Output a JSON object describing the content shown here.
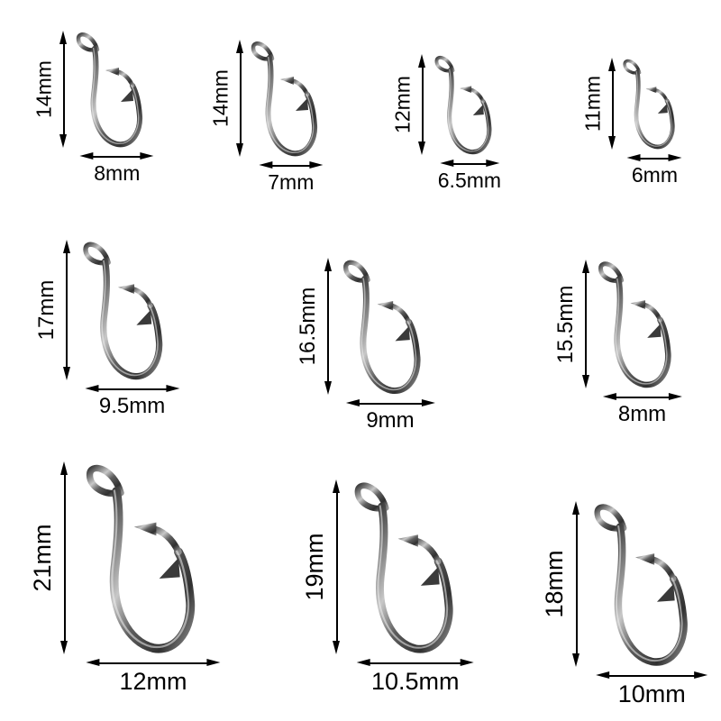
{
  "canvas": {
    "background": "#ffffff",
    "unit": "mm"
  },
  "style": {
    "dimension_color": "#000000",
    "hook_metal_dark": "#303030",
    "hook_metal_mid": "#5d5d5d",
    "hook_metal_light": "#c8c8c8"
  },
  "rows": [
    {
      "hooks": [
        {
          "height_label": "14mm",
          "width_label": "8mm",
          "height_mm": 14,
          "width_mm": 8
        },
        {
          "height_label": "14mm",
          "width_label": "7mm",
          "height_mm": 14,
          "width_mm": 7
        },
        {
          "height_label": "12mm",
          "width_label": "6.5mm",
          "height_mm": 12,
          "width_mm": 6.5
        },
        {
          "height_label": "11mm",
          "width_label": "6mm",
          "height_mm": 11,
          "width_mm": 6
        }
      ]
    },
    {
      "hooks": [
        {
          "height_label": "17mm",
          "width_label": "9.5mm",
          "height_mm": 17,
          "width_mm": 9.5
        },
        {
          "height_label": "16.5mm",
          "width_label": "9mm",
          "height_mm": 16.5,
          "width_mm": 9
        },
        {
          "height_label": "15.5mm",
          "width_label": "8mm",
          "height_mm": 15.5,
          "width_mm": 8
        }
      ]
    },
    {
      "hooks": [
        {
          "height_label": "21mm",
          "width_label": "12mm",
          "height_mm": 21,
          "width_mm": 12
        },
        {
          "height_label": "19mm",
          "width_label": "10.5mm",
          "height_mm": 19,
          "width_mm": 10.5
        },
        {
          "height_label": "18mm",
          "width_label": "10mm",
          "height_mm": 18,
          "width_mm": 10
        }
      ]
    }
  ]
}
